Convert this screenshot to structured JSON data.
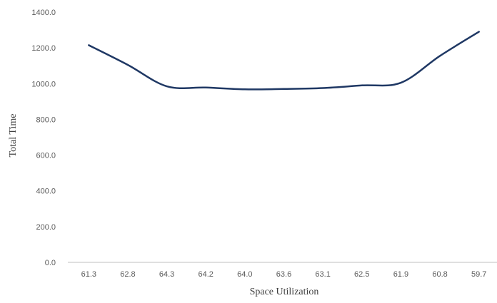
{
  "chart_data": {
    "type": "line",
    "title": "",
    "xlabel": "Space Utilization",
    "ylabel": "Total Time",
    "categories": [
      "61.3",
      "62.8",
      "64.3",
      "64.2",
      "64.0",
      "63.6",
      "63.1",
      "62.5",
      "61.9",
      "60.8",
      "59.7"
    ],
    "series": [
      {
        "values": [
          1215,
          1105,
          985,
          978,
          968,
          970,
          975,
          990,
          1005,
          1155,
          1290
        ]
      }
    ],
    "ylim": [
      0,
      1400
    ],
    "yticks": [
      "0.0",
      "200.0",
      "400.0",
      "600.0",
      "800.0",
      "1000.0",
      "1200.0",
      "1400.0"
    ],
    "grid": false,
    "legend": "none",
    "colors": {
      "line": "#1f3864",
      "axis": "#bfbfbf"
    }
  }
}
